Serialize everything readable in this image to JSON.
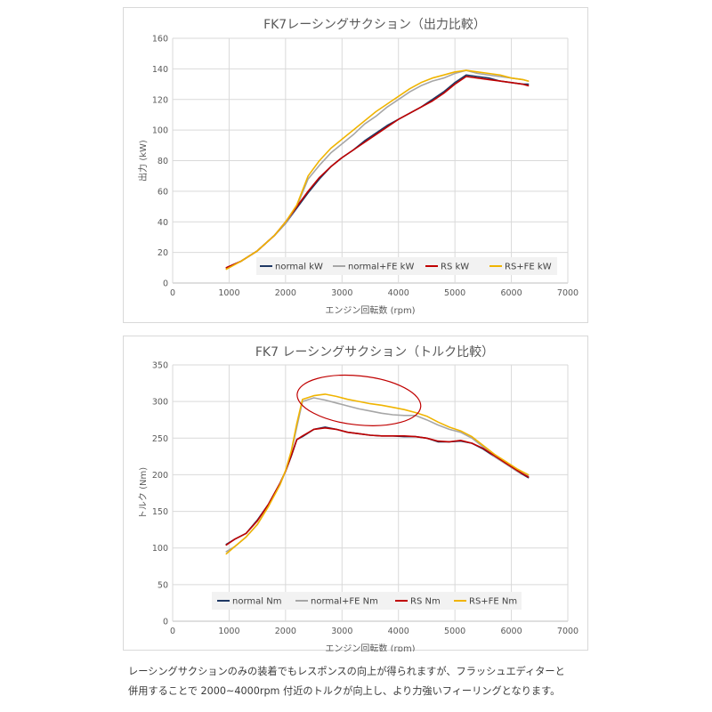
{
  "caption": {
    "line1": "レーシングサクションのみの装着でもレスポンスの向上が得られますが、フラッシュエディターと",
    "line2": "併用することで 2000~4000rpm 付近のトルクが向上し、より力強いフィーリングとなります。"
  },
  "chart_data": [
    {
      "type": "line",
      "title": "FK7レーシングサクション（出力比較）",
      "xlabel": "エンジン回転数 (rpm)",
      "ylabel": "出力 (kW)",
      "xlim": [
        0,
        7000
      ],
      "ylim": [
        0,
        160
      ],
      "xticks": [
        "0",
        "1000",
        "2000",
        "3000",
        "4000",
        "5000",
        "6000",
        "7000"
      ],
      "yticks": [
        "0",
        "20",
        "40",
        "60",
        "80",
        "100",
        "120",
        "140",
        "160"
      ],
      "x": [
        950,
        1200,
        1500,
        1800,
        2000,
        2200,
        2400,
        2600,
        2800,
        3000,
        3200,
        3400,
        3600,
        3800,
        4000,
        4200,
        4400,
        4600,
        4800,
        5000,
        5200,
        5400,
        5600,
        5800,
        6000,
        6200,
        6300
      ],
      "series": [
        {
          "name": "normal kW",
          "color": "#1f3864",
          "values": [
            10,
            14,
            21,
            31,
            39,
            49,
            59,
            68,
            76,
            82,
            87,
            93,
            98,
            103,
            107,
            111,
            115,
            120,
            125,
            131,
            136,
            135,
            134,
            132,
            131,
            130,
            130
          ]
        },
        {
          "name": "normal+FE kW",
          "color": "#a6a6a6",
          "values": [
            10,
            14,
            21,
            31,
            39,
            50,
            68,
            77,
            85,
            91,
            97,
            104,
            109,
            115,
            120,
            125,
            129,
            132,
            134,
            137,
            139,
            137,
            136,
            135,
            134,
            133,
            132
          ]
        },
        {
          "name": "RS kW",
          "color": "#c00000",
          "values": [
            10,
            14,
            21,
            31,
            40,
            50,
            60,
            69,
            76,
            82,
            87,
            92,
            97,
            102,
            107,
            111,
            115,
            119,
            124,
            130,
            135,
            134,
            133,
            132,
            131,
            130,
            129
          ]
        },
        {
          "name": "RS+FE kW",
          "color": "#f0b400",
          "values": [
            9,
            14,
            21,
            31,
            40,
            51,
            70,
            80,
            88,
            94,
            100,
            106,
            112,
            117,
            122,
            127,
            131,
            134,
            136,
            138,
            139,
            138,
            137,
            136,
            134,
            133,
            132
          ]
        }
      ],
      "legend_position": "inside-bottom-right",
      "grid": true
    },
    {
      "type": "line",
      "title": "FK7 レーシングサクション（トルク比較）",
      "xlabel": "エンジン回転数 (rpm)",
      "ylabel": "トルク (Nm)",
      "xlim": [
        0,
        7000
      ],
      "ylim": [
        0,
        350
      ],
      "xticks": [
        "0",
        "1000",
        "2000",
        "3000",
        "4000",
        "5000",
        "6000",
        "7000"
      ],
      "yticks": [
        "0",
        "50",
        "100",
        "150",
        "200",
        "250",
        "300",
        "350"
      ],
      "x": [
        950,
        1100,
        1300,
        1500,
        1700,
        1900,
        2000,
        2100,
        2200,
        2300,
        2500,
        2700,
        2900,
        3100,
        3300,
        3500,
        3700,
        3900,
        4100,
        4300,
        4500,
        4700,
        4900,
        5100,
        5300,
        5500,
        5700,
        5900,
        6100,
        6300
      ],
      "series": [
        {
          "name": "normal Nm",
          "color": "#1f3864",
          "values": [
            105,
            112,
            120,
            138,
            160,
            188,
            205,
            225,
            248,
            252,
            262,
            265,
            262,
            258,
            256,
            254,
            253,
            253,
            252,
            252,
            250,
            245,
            245,
            246,
            243,
            235,
            225,
            215,
            205,
            196
          ]
        },
        {
          "name": "normal+FE Nm",
          "color": "#a6a6a6",
          "values": [
            95,
            102,
            115,
            132,
            158,
            186,
            205,
            230,
            265,
            300,
            305,
            302,
            298,
            294,
            290,
            287,
            284,
            282,
            281,
            281,
            275,
            268,
            262,
            258,
            250,
            238,
            225,
            215,
            205,
            198
          ]
        },
        {
          "name": "RS Nm",
          "color": "#c00000",
          "values": [
            104,
            112,
            120,
            137,
            160,
            188,
            205,
            226,
            248,
            253,
            262,
            264,
            262,
            258,
            256,
            254,
            253,
            253,
            253,
            252,
            250,
            246,
            245,
            247,
            243,
            236,
            226,
            216,
            206,
            197
          ]
        },
        {
          "name": "RS+FE Nm",
          "color": "#f0b400",
          "values": [
            92,
            102,
            115,
            132,
            157,
            186,
            206,
            232,
            270,
            303,
            308,
            310,
            307,
            303,
            300,
            297,
            295,
            292,
            289,
            285,
            280,
            272,
            265,
            260,
            252,
            240,
            228,
            218,
            208,
            200
          ]
        }
      ],
      "legend_position": "inside-bottom",
      "highlight": {
        "type": "ellipse",
        "x_range": [
          2200,
          4400
        ],
        "y_range": [
          268,
          335
        ],
        "color": "#c00000"
      },
      "grid": true
    }
  ]
}
